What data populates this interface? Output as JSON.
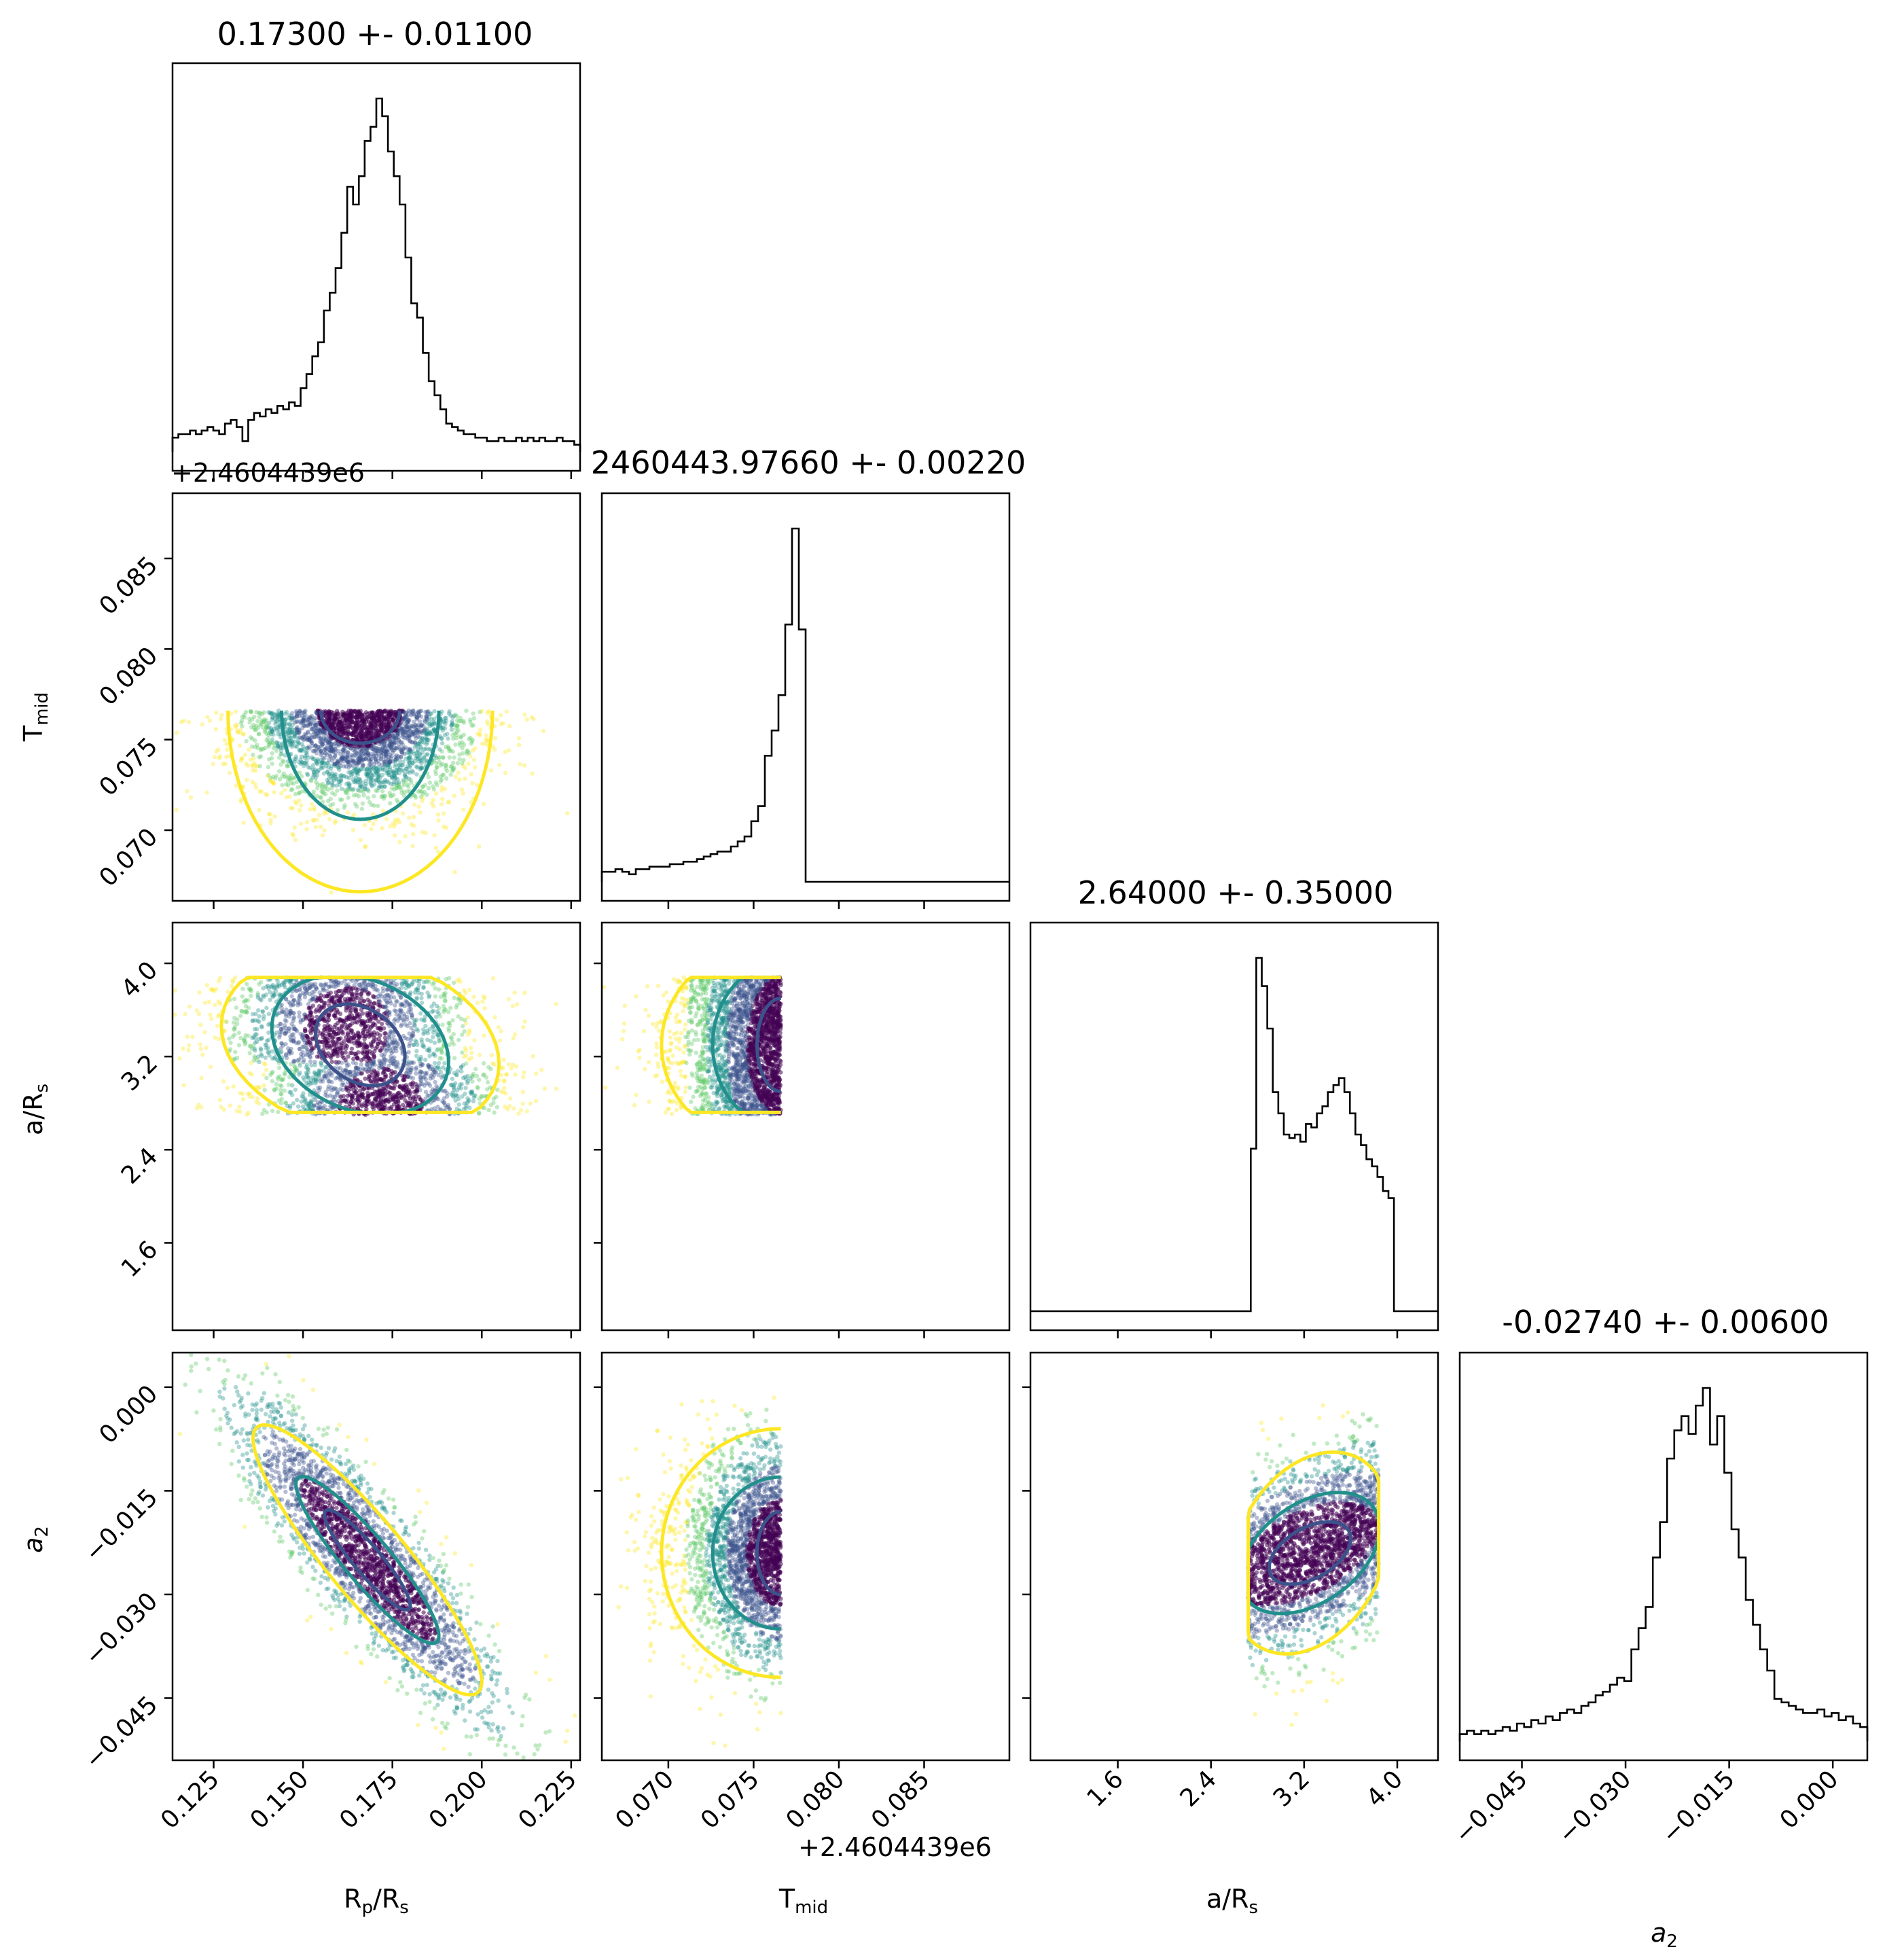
{
  "colors": {
    "dense": "#440154",
    "mid": "#21908c",
    "mid2": "#3b528b",
    "light": "#5dc863",
    "sparse": "#fde725",
    "hist": "#000000"
  },
  "titles": {
    "rp": "0.17300 +- 0.01100",
    "tmid": "2460443.97660 +- 0.00220",
    "ars": "2.64000 +- 0.35000",
    "a2": "-0.02740 +- 0.00600"
  },
  "labels": {
    "rp": "R_p/R_s",
    "tmid": "T_mid",
    "ars": "a/R_s",
    "a2": "a_2"
  },
  "offsets": {
    "tmid": "+2.4604439e6"
  },
  "ticks": {
    "rp": [
      "0.125",
      "0.150",
      "0.175",
      "0.200",
      "0.225"
    ],
    "tmid": [
      "0.070",
      "0.075",
      "0.080",
      "0.085"
    ],
    "ars": [
      "1.6",
      "2.4",
      "3.2",
      "4.0"
    ],
    "a2": [
      "−0.045",
      "−0.030",
      "−0.015",
      "0.000"
    ]
  },
  "chart_data": {
    "type": "scatter",
    "variables": [
      "R_p/R_s",
      "T_mid",
      "a/R_s",
      "a_2"
    ],
    "ranges": {
      "rp": [
        0.1135,
        0.2275
      ],
      "tmid": [
        0.0661,
        0.09
      ],
      "ars": [
        0.85,
        4.35
      ],
      "a2": [
        -0.054,
        0.005
      ]
    },
    "marginals": {
      "rp": {
        "range": [
          0.1135,
          0.2275
        ],
        "peak_x": 0.166,
        "counts": [
          4,
          5,
          5,
          6,
          5,
          6,
          7,
          6,
          5,
          8,
          9,
          7,
          3,
          9,
          11,
          10,
          12,
          11,
          13,
          12,
          14,
          13,
          18,
          22,
          27,
          31,
          40,
          45,
          52,
          62,
          75,
          70,
          78,
          88,
          92,
          100,
          95,
          85,
          78,
          70,
          55,
          42,
          38,
          28,
          20,
          16,
          12,
          8,
          7,
          6,
          5,
          5,
          4,
          4,
          3,
          3,
          4,
          3,
          3,
          4,
          3,
          4,
          3,
          4,
          3,
          3,
          4,
          3,
          3,
          2
        ]
      },
      "tmid": {
        "range": [
          0.0661,
          0.09
        ],
        "peak_x": 0.0767,
        "counts": [
          4,
          4,
          5,
          4,
          3,
          5,
          5,
          6,
          6,
          6,
          7,
          7,
          8,
          8,
          9,
          10,
          11,
          12,
          12,
          14,
          16,
          18,
          24,
          30,
          50,
          60,
          74,
          102,
          140,
          100,
          0,
          0,
          0,
          0,
          0,
          0,
          0,
          0,
          0,
          0,
          0,
          0,
          0,
          0,
          0,
          0,
          0,
          0,
          0,
          0,
          0,
          0,
          0,
          0,
          0,
          0,
          0,
          0,
          0,
          0
        ]
      },
      "ars": {
        "range": [
          0.85,
          4.35
        ],
        "peak_x": 2.72,
        "counts": [
          0,
          0,
          0,
          0,
          0,
          0,
          0,
          0,
          0,
          0,
          0,
          0,
          0,
          0,
          0,
          0,
          0,
          0,
          0,
          0,
          0,
          0,
          0,
          0,
          0,
          0,
          0,
          0,
          0,
          0,
          0,
          0,
          0,
          0,
          0,
          0,
          0,
          0,
          0,
          0,
          46,
          100,
          92,
          80,
          62,
          56,
          50,
          49,
          50,
          48,
          53,
          52,
          56,
          58,
          62,
          64,
          66,
          62,
          56,
          50,
          47,
          43,
          41,
          38,
          34,
          32,
          0,
          0,
          0,
          0,
          0,
          0,
          0,
          0
        ]
      },
      "a2": {
        "range": [
          -0.054,
          0.005
        ],
        "peak_x": -0.024,
        "counts": [
          2,
          3,
          2,
          3,
          2,
          3,
          4,
          3,
          5,
          4,
          6,
          5,
          7,
          6,
          8,
          9,
          8,
          10,
          11,
          13,
          14,
          16,
          18,
          17,
          26,
          32,
          38,
          52,
          62,
          80,
          88,
          92,
          87,
          95,
          100,
          84,
          92,
          76,
          60,
          52,
          40,
          33,
          26,
          20,
          12,
          11,
          10,
          9,
          8,
          8,
          9,
          7,
          8,
          6,
          7,
          5,
          4
        ]
      }
    },
    "pairs": [
      {
        "x": "rp",
        "y": "tmid",
        "y_range": [
          0.0661,
          0.0886
        ],
        "note": "samples truncated at T_mid ≈ 0.0766",
        "mode_x": 0.166,
        "mode_y": 0.076
      },
      {
        "x": "rp",
        "y": "ars",
        "mode_x": 0.163,
        "mode_y": 3.4
      },
      {
        "x": "tmid",
        "y": "ars",
        "mode_x": 0.0762,
        "mode_y": 3.2
      },
      {
        "x": "rp",
        "y": "a2",
        "mode_x": 0.168,
        "mode_y": -0.025
      },
      {
        "x": "tmid",
        "y": "a2",
        "mode_x": 0.0762,
        "mode_y": -0.024
      },
      {
        "x": "ars",
        "y": "a2",
        "mode_x": 3.2,
        "mode_y": -0.02
      }
    ]
  }
}
